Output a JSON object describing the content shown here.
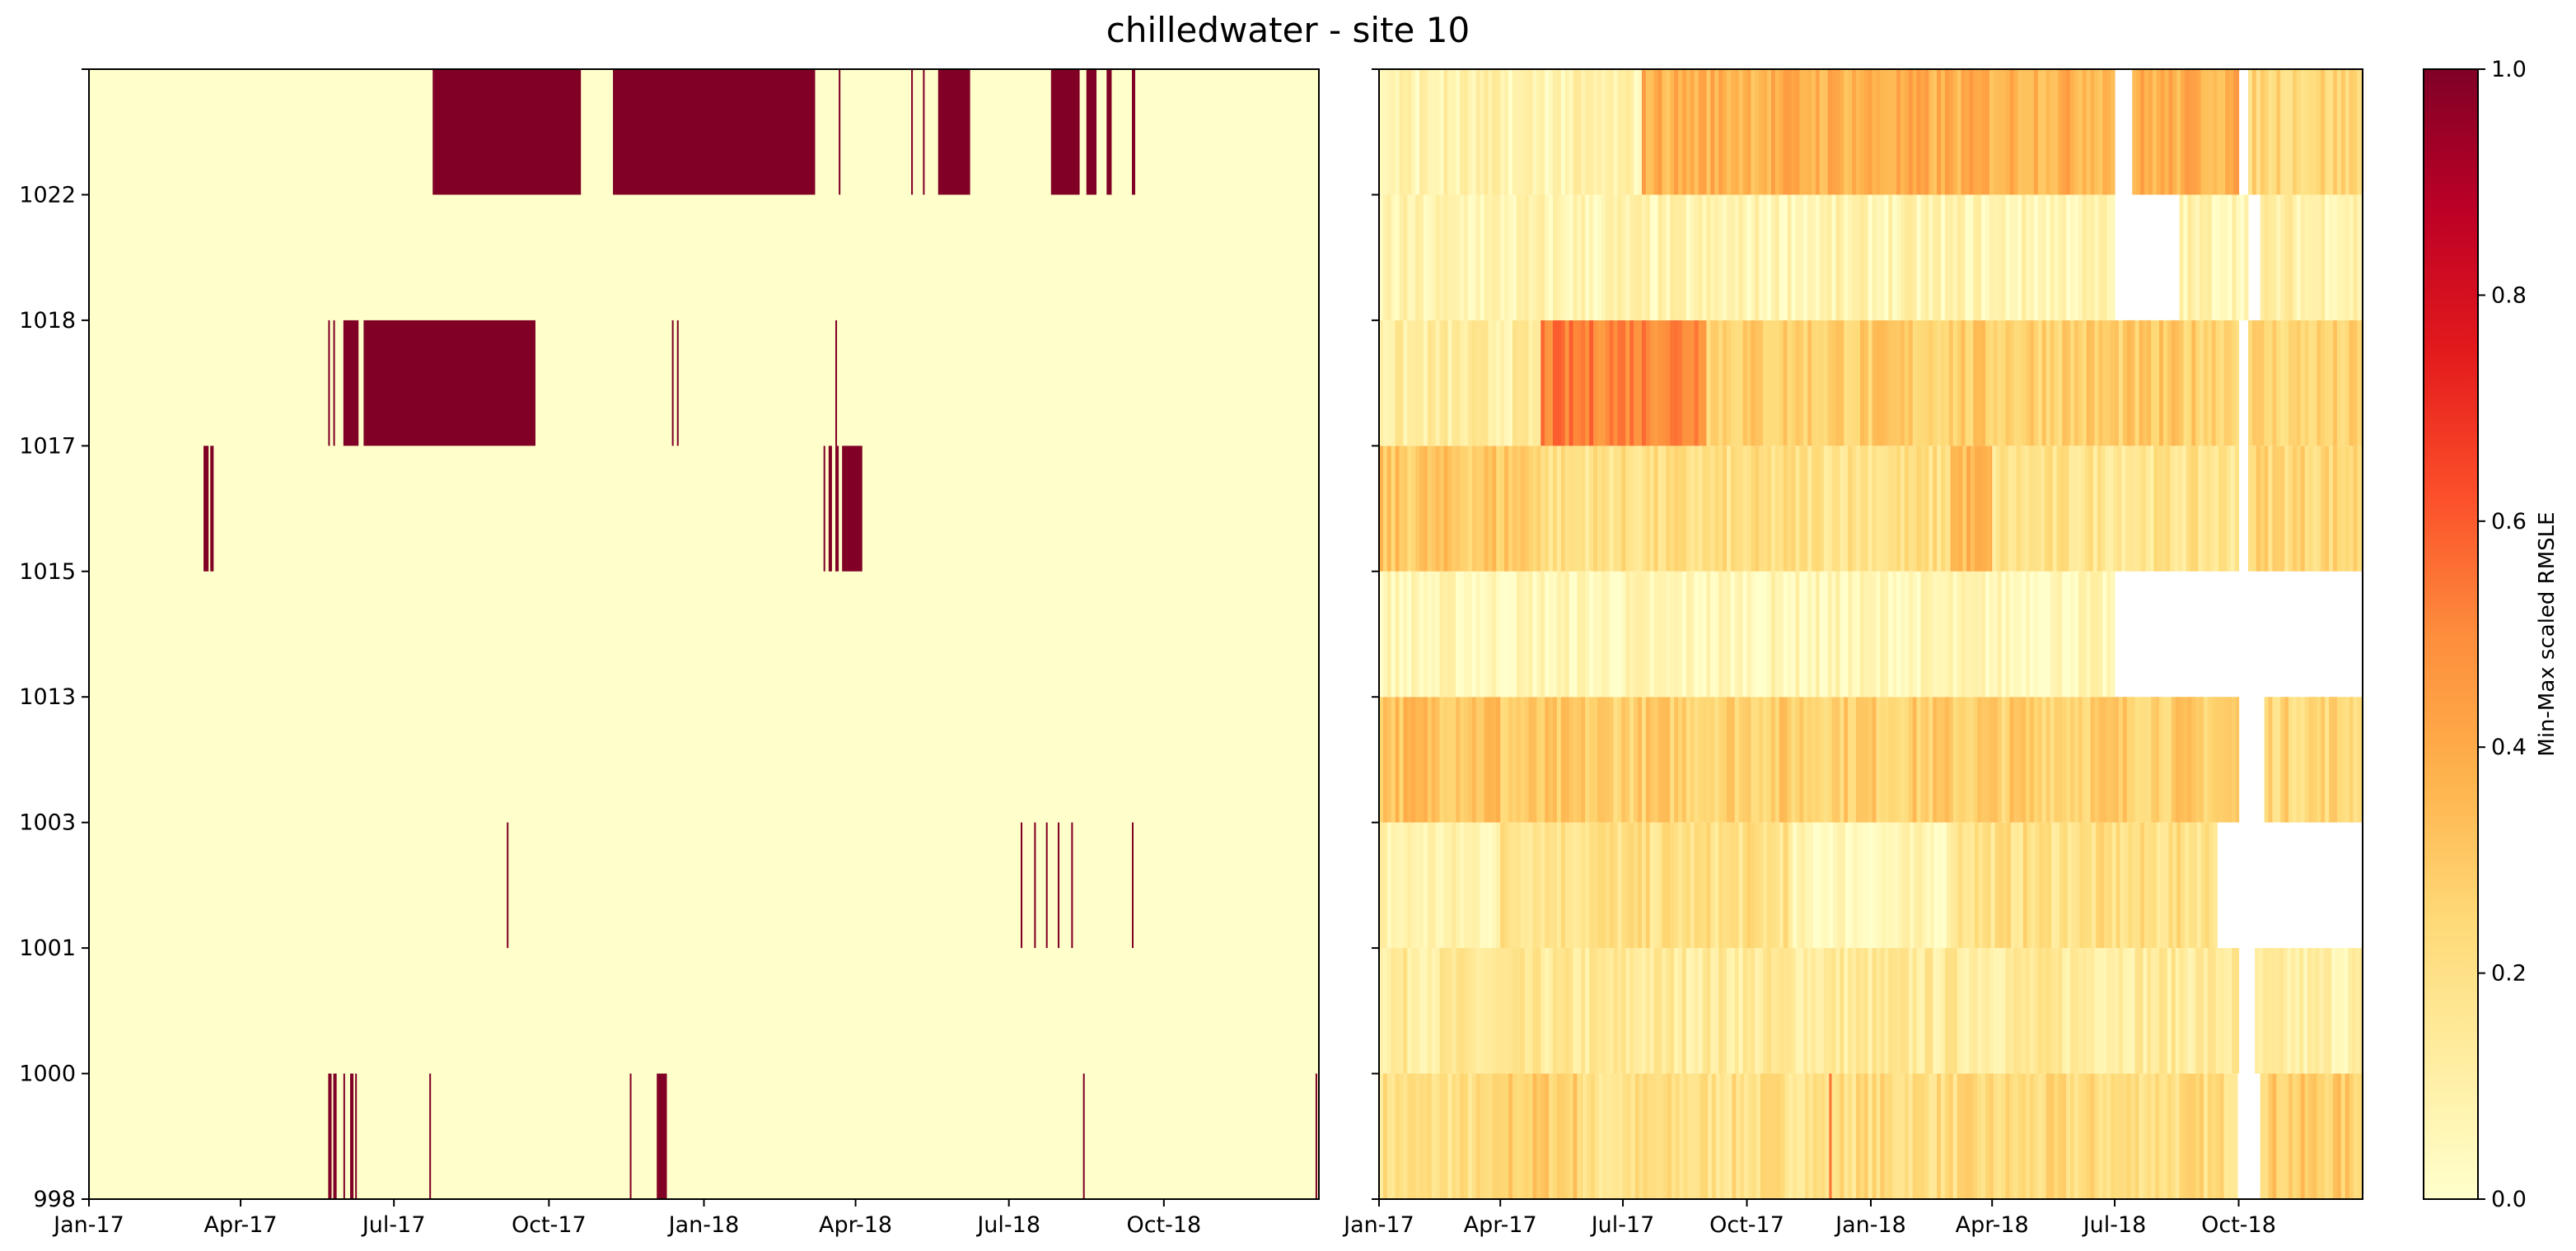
{
  "figure": {
    "title": "chilledwater - site 10"
  },
  "colors": {
    "low": "#ffffcc",
    "high": "#800026",
    "missing": "#ffffff",
    "axis": "#000000"
  },
  "colormap": "YlOrRd",
  "chart_data": [
    {
      "type": "heatmap",
      "name": "binary anomaly panel",
      "title": "",
      "xlabel": "",
      "ylabel": "",
      "x_range": [
        "2017-01-01",
        "2019-01-01"
      ],
      "x_ticks": [
        "Jan-17",
        "Apr-17",
        "Jul-17",
        "Oct-17",
        "Jan-18",
        "Apr-18",
        "Jul-18",
        "Oct-18"
      ],
      "y_ticks": [
        "998",
        "1000",
        "1001",
        "1003",
        "1013",
        "1015",
        "1017",
        "1018",
        "1022"
      ],
      "rows": [
        {
          "building": "998",
          "flagged_dates": [
            [
              "2017-05-23",
              "2017-05-25"
            ],
            [
              "2017-05-26",
              "2017-05-28"
            ],
            [
              "2017-06-01",
              "2017-06-02"
            ],
            [
              "2017-06-05",
              "2017-06-07"
            ],
            [
              "2017-06-08",
              "2017-06-09"
            ],
            [
              "2017-07-22",
              "2017-07-23"
            ],
            [
              "2017-11-18",
              "2017-11-19"
            ],
            [
              "2017-12-04",
              "2017-12-10"
            ],
            [
              "2018-08-14",
              "2018-08-15"
            ],
            [
              "2018-12-30",
              "2018-12-31"
            ]
          ]
        },
        {
          "building": "1000",
          "flagged_dates": []
        },
        {
          "building": "1001",
          "flagged_dates": [
            [
              "2017-09-06",
              "2017-09-07"
            ],
            [
              "2018-07-08",
              "2018-07-09"
            ],
            [
              "2018-07-16",
              "2018-07-17"
            ],
            [
              "2018-07-23",
              "2018-07-24"
            ],
            [
              "2018-07-30",
              "2018-07-31"
            ],
            [
              "2018-08-07",
              "2018-08-08"
            ],
            [
              "2018-09-12",
              "2018-09-13"
            ]
          ]
        },
        {
          "building": "1003",
          "flagged_dates": []
        },
        {
          "building": "1013",
          "flagged_dates": []
        },
        {
          "building": "1015",
          "flagged_dates": [
            [
              "2017-03-10",
              "2017-03-13"
            ],
            [
              "2017-03-14",
              "2017-03-16"
            ],
            [
              "2018-03-13",
              "2018-03-14"
            ],
            [
              "2018-03-16",
              "2018-03-18"
            ],
            [
              "2018-03-20",
              "2018-03-22"
            ],
            [
              "2018-03-24",
              "2018-04-05"
            ]
          ]
        },
        {
          "building": "1017",
          "flagged_dates": [
            [
              "2017-05-23",
              "2017-05-24"
            ],
            [
              "2017-05-26",
              "2017-05-27"
            ],
            [
              "2017-06-01",
              "2017-06-10"
            ],
            [
              "2017-06-13",
              "2017-09-23"
            ],
            [
              "2017-12-13",
              "2017-12-14"
            ],
            [
              "2017-12-16",
              "2017-12-17"
            ],
            [
              "2018-03-20",
              "2018-03-21"
            ]
          ]
        },
        {
          "building": "1018",
          "flagged_dates": []
        },
        {
          "building": "1022",
          "flagged_dates": [
            [
              "2017-07-24",
              "2017-10-20"
            ],
            [
              "2017-11-08",
              "2018-03-08"
            ],
            [
              "2018-03-22",
              "2018-03-23"
            ],
            [
              "2018-05-04",
              "2018-05-05"
            ],
            [
              "2018-05-11",
              "2018-05-12"
            ],
            [
              "2018-05-20",
              "2018-06-08"
            ],
            [
              "2018-07-26",
              "2018-08-12"
            ],
            [
              "2018-08-16",
              "2018-08-22"
            ],
            [
              "2018-08-28",
              "2018-08-31"
            ],
            [
              "2018-09-12",
              "2018-09-14"
            ]
          ]
        }
      ],
      "values_in_flagged": 1.0,
      "values_elsewhere": 0.0
    },
    {
      "type": "heatmap",
      "name": "scaled error panel",
      "title": "",
      "xlabel": "",
      "ylabel": "",
      "x_range": [
        "2017-01-01",
        "2019-01-01"
      ],
      "x_ticks": [
        "Jan-17",
        "Apr-17",
        "Jul-17",
        "Oct-17",
        "Jan-18",
        "Apr-18",
        "Jul-18",
        "Oct-18"
      ],
      "y_ticks": [
        "998",
        "1000",
        "1001",
        "1003",
        "1013",
        "1015",
        "1017",
        "1018",
        "1022"
      ],
      "zlim": [
        0.0,
        1.0
      ],
      "missing_color": "white",
      "rows": [
        {
          "building": "998",
          "typical_value": 0.22,
          "segments": [
            {
              "from": "2017-01-01",
              "to": "2017-04-01",
              "value": 0.2
            },
            {
              "from": "2017-04-01",
              "to": "2017-06-01",
              "value": 0.28
            },
            {
              "from": "2017-06-01",
              "to": "2017-07-01",
              "value": 0.18
            },
            {
              "from": "2017-07-01",
              "to": "2017-12-01",
              "value": 0.2
            },
            {
              "from": "2017-12-01",
              "to": "2017-12-03",
              "value": 0.48
            },
            {
              "from": "2017-12-03",
              "to": "2018-09-30",
              "value": 0.22
            },
            {
              "from": "2018-10-01",
              "to": "2018-10-17",
              "value": null
            },
            {
              "from": "2018-10-17",
              "to": "2019-01-01",
              "value": 0.28
            }
          ]
        },
        {
          "building": "1000",
          "typical_value": 0.14,
          "segments": [
            {
              "from": "2017-01-01",
              "to": "2018-10-01",
              "value": 0.14
            },
            {
              "from": "2018-10-01",
              "to": "2018-10-13",
              "value": null
            },
            {
              "from": "2018-10-13",
              "to": "2019-01-01",
              "value": 0.1
            }
          ]
        },
        {
          "building": "1001",
          "typical_value": 0.16,
          "segments": [
            {
              "from": "2017-01-01",
              "to": "2017-04-01",
              "value": 0.08
            },
            {
              "from": "2017-04-01",
              "to": "2017-11-01",
              "value": 0.2
            },
            {
              "from": "2017-11-01",
              "to": "2018-03-01",
              "value": 0.05
            },
            {
              "from": "2018-03-01",
              "to": "2018-09-15",
              "value": 0.2
            },
            {
              "from": "2018-09-15",
              "to": "2019-01-01",
              "value": null
            }
          ]
        },
        {
          "building": "1003",
          "typical_value": 0.3,
          "segments": [
            {
              "from": "2017-01-01",
              "to": "2017-04-01",
              "value": 0.33
            },
            {
              "from": "2017-04-01",
              "to": "2018-10-01",
              "value": 0.28
            },
            {
              "from": "2018-10-01",
              "to": "2018-10-20",
              "value": null
            },
            {
              "from": "2018-10-20",
              "to": "2019-01-01",
              "value": 0.25
            }
          ]
        },
        {
          "building": "1013",
          "typical_value": 0.05,
          "segments": [
            {
              "from": "2017-01-01",
              "to": "2018-07-01",
              "value": 0.05
            },
            {
              "from": "2018-07-01",
              "to": "2019-01-01",
              "value": null
            }
          ]
        },
        {
          "building": "1015",
          "typical_value": 0.22,
          "segments": [
            {
              "from": "2017-01-01",
              "to": "2017-05-01",
              "value": 0.3
            },
            {
              "from": "2017-05-01",
              "to": "2018-03-01",
              "value": 0.2
            },
            {
              "from": "2018-03-01",
              "to": "2018-04-01",
              "value": 0.35
            },
            {
              "from": "2018-04-01",
              "to": "2018-10-01",
              "value": 0.18
            },
            {
              "from": "2018-10-01",
              "to": "2018-10-08",
              "value": null
            },
            {
              "from": "2018-10-08",
              "to": "2019-01-01",
              "value": 0.25
            }
          ]
        },
        {
          "building": "1017",
          "typical_value": 0.25,
          "segments": [
            {
              "from": "2017-01-01",
              "to": "2017-05-01",
              "value": 0.12
            },
            {
              "from": "2017-05-01",
              "to": "2017-09-01",
              "value": 0.52
            },
            {
              "from": "2017-09-01",
              "to": "2018-10-01",
              "value": 0.28
            },
            {
              "from": "2018-10-01",
              "to": "2018-10-08",
              "value": null
            },
            {
              "from": "2018-10-08",
              "to": "2019-01-01",
              "value": 0.25
            }
          ]
        },
        {
          "building": "1018",
          "typical_value": 0.07,
          "segments": [
            {
              "from": "2017-01-01",
              "to": "2018-07-01",
              "value": 0.07
            },
            {
              "from": "2018-07-01",
              "to": "2018-08-18",
              "value": null
            },
            {
              "from": "2018-08-18",
              "to": "2018-10-08",
              "value": 0.08
            },
            {
              "from": "2018-10-08",
              "to": "2018-10-17",
              "value": null
            },
            {
              "from": "2018-10-17",
              "to": "2019-01-01",
              "value": 0.1
            }
          ]
        },
        {
          "building": "1022",
          "typical_value": 0.35,
          "segments": [
            {
              "from": "2017-01-01",
              "to": "2017-07-15",
              "value": 0.08
            },
            {
              "from": "2017-07-15",
              "to": "2018-07-01",
              "value": 0.38
            },
            {
              "from": "2018-07-01",
              "to": "2018-07-14",
              "value": null
            },
            {
              "from": "2018-07-14",
              "to": "2018-10-01",
              "value": 0.38
            },
            {
              "from": "2018-10-01",
              "to": "2018-10-08",
              "value": null
            },
            {
              "from": "2018-10-08",
              "to": "2019-01-01",
              "value": 0.25
            }
          ]
        }
      ]
    }
  ],
  "colorbar": {
    "label": "Min-Max scaled RMSLE",
    "ticks": [
      "0.0",
      "0.2",
      "0.4",
      "0.6",
      "0.8",
      "1.0"
    ],
    "range": [
      0.0,
      1.0
    ]
  }
}
